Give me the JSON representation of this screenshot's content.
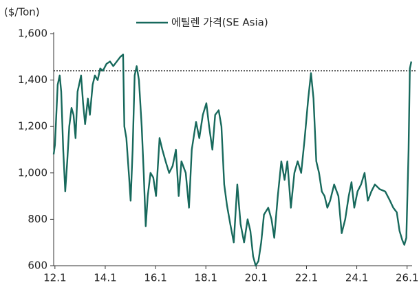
{
  "chart_data": {
    "type": "line",
    "y_label": "($/Ton)",
    "x": [
      11.95,
      12,
      12.11,
      12.19,
      12.25,
      12.33,
      12.41,
      12.49,
      12.57,
      12.66,
      12.74,
      12.82,
      12.9,
      13.04,
      13.12,
      13.2,
      13.31,
      13.39,
      13.5,
      13.59,
      13.7,
      13.8,
      13.91,
      14.05,
      14.19,
      14.32,
      14.46,
      14.6,
      14.71,
      14.76,
      14.84,
      14.95,
      15.01,
      15.09,
      15.17,
      15.25,
      15.34,
      15.45,
      15.53,
      15.61,
      15.69,
      15.8,
      15.91,
      16.02,
      16.16,
      16.27,
      16.4,
      16.54,
      16.68,
      16.81,
      16.92,
      17.03,
      17.2,
      17.33,
      17.44,
      17.61,
      17.74,
      17.88,
      18.02,
      18.13,
      18.26,
      18.37,
      18.51,
      18.62,
      18.73,
      18.84,
      18.97,
      19.11,
      19.25,
      19.38,
      19.52,
      19.66,
      19.77,
      19.88,
      19.98,
      20.09,
      20.2,
      20.31,
      20.48,
      20.61,
      20.72,
      20.86,
      21.0,
      21.13,
      21.24,
      21.38,
      21.52,
      21.65,
      21.79,
      21.93,
      22.07,
      22.18,
      22.28,
      22.39,
      22.5,
      22.61,
      22.72,
      22.83,
      22.94,
      23.1,
      23.27,
      23.4,
      23.54,
      23.68,
      23.79,
      23.9,
      24.03,
      24.17,
      24.31,
      24.44,
      24.58,
      24.72,
      24.91,
      25.13,
      25.32,
      25.45,
      25.59,
      25.7,
      25.81,
      25.89,
      25.97,
      26.06,
      26.11,
      26.17
    ],
    "series": [
      {
        "name": "에틸렌 가격(SE Asia)",
        "color": "#17695c",
        "values": [
          1080,
          1120,
          1380,
          1420,
          1350,
          1100,
          920,
          1050,
          1200,
          1280,
          1250,
          1150,
          1350,
          1420,
          1300,
          1210,
          1320,
          1250,
          1380,
          1420,
          1400,
          1450,
          1440,
          1470,
          1480,
          1460,
          1480,
          1500,
          1510,
          1200,
          1150,
          980,
          880,
          1100,
          1420,
          1460,
          1400,
          1200,
          1000,
          770,
          900,
          1000,
          980,
          900,
          1150,
          1100,
          1050,
          1000,
          1030,
          1100,
          900,
          1050,
          1000,
          850,
          1100,
          1220,
          1150,
          1250,
          1300,
          1200,
          1100,
          1250,
          1270,
          1200,
          950,
          860,
          780,
          700,
          950,
          780,
          700,
          800,
          750,
          640,
          600,
          620,
          700,
          820,
          850,
          800,
          720,
          900,
          1050,
          970,
          1050,
          850,
          1000,
          1050,
          1000,
          1150,
          1320,
          1430,
          1320,
          1050,
          1000,
          920,
          900,
          850,
          880,
          950,
          900,
          740,
          800,
          900,
          960,
          850,
          920,
          950,
          1000,
          880,
          920,
          950,
          930,
          920,
          880,
          850,
          830,
          750,
          710,
          690,
          720,
          1100,
          1450,
          1480
        ]
      }
    ],
    "reference_line": 1440,
    "xlim": [
      11.95,
      26.2
    ],
    "xticks": [
      {
        "value": 12,
        "label": "12.1"
      },
      {
        "value": 14,
        "label": "14.1"
      },
      {
        "value": 16,
        "label": "16.1"
      },
      {
        "value": 18,
        "label": "18.1"
      },
      {
        "value": 20,
        "label": "20.1"
      },
      {
        "value": 22,
        "label": "22.1"
      },
      {
        "value": 24,
        "label": "24.1"
      },
      {
        "value": 26,
        "label": "26.1"
      }
    ],
    "ylim": [
      600,
      1600
    ],
    "yticks": [
      600,
      800,
      {
        "value": 1000,
        "label": "1,000"
      },
      {
        "value": 1200,
        "label": "1,200"
      },
      {
        "value": 1400,
        "label": "1,400"
      },
      {
        "value": 1600,
        "label": "1,600"
      }
    ],
    "grid": false,
    "legend": "top"
  }
}
